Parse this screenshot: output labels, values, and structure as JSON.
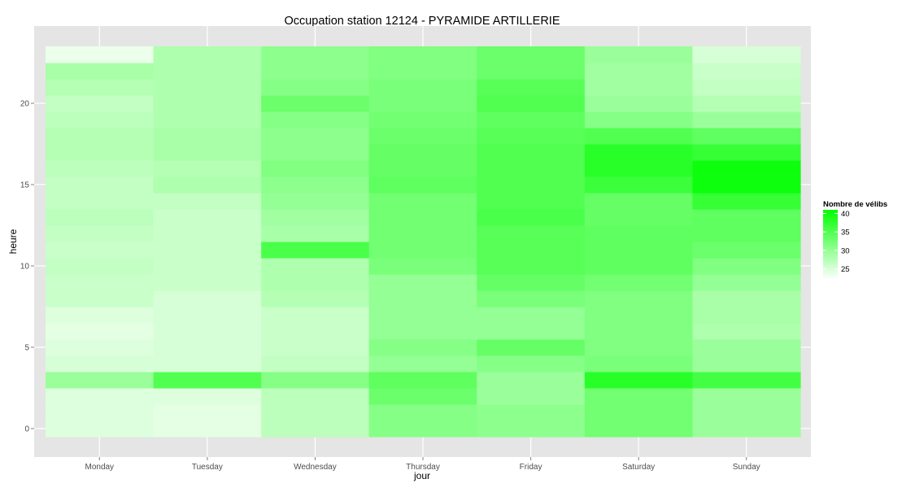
{
  "colors": {
    "low": "#ffffff",
    "high": "#00ff00",
    "panel": "#e5e5e5",
    "grid": "#ffffff",
    "tick_text": "#4d4d4d"
  },
  "chart_data": {
    "type": "heatmap",
    "title": "Occupation station 12124 - PYRAMIDE ARTILLERIE",
    "xlabel": "jour",
    "ylabel": "heure",
    "x": [
      "Monday",
      "Tuesday",
      "Wednesday",
      "Thursday",
      "Friday",
      "Saturday",
      "Sunday"
    ],
    "y": [
      0,
      1,
      2,
      3,
      4,
      5,
      6,
      7,
      8,
      9,
      10,
      11,
      12,
      13,
      14,
      15,
      16,
      17,
      18,
      19,
      20,
      21,
      22,
      23
    ],
    "yticks": [
      0,
      5,
      10,
      15,
      20
    ],
    "ylim": [
      -0.5,
      23.5
    ],
    "legend": {
      "title": "Nombre de vélibs",
      "ticks": [
        25,
        30,
        35,
        40
      ],
      "range": [
        22,
        41
      ],
      "position": "right"
    },
    "values": [
      [
        24.5,
        24,
        27,
        31,
        30.5,
        32.5,
        29.5
      ],
      [
        24.5,
        24,
        27,
        31,
        30.5,
        32.5,
        29.5
      ],
      [
        24.5,
        24.5,
        27,
        33,
        29.5,
        32.5,
        29.5
      ],
      [
        29.5,
        35,
        31,
        34,
        29.5,
        38,
        36
      ],
      [
        25,
        25,
        26.5,
        30,
        31,
        32,
        29.5
      ],
      [
        24.5,
        25,
        26,
        31,
        33.5,
        31.5,
        29.5
      ],
      [
        24,
        25,
        26,
        30,
        30,
        31.5,
        28
      ],
      [
        24.5,
        25,
        26,
        30,
        30,
        31.5,
        28.5
      ],
      [
        26,
        25,
        27.5,
        30,
        32,
        31.5,
        28.5
      ],
      [
        26,
        26,
        28,
        30,
        33.5,
        32.5,
        30
      ],
      [
        26.5,
        26,
        28,
        32,
        34.5,
        34,
        31.5
      ],
      [
        26,
        26,
        35.5,
        32.5,
        34.5,
        34,
        33
      ],
      [
        26.5,
        26,
        28.5,
        32.5,
        34.5,
        34,
        34
      ],
      [
        27,
        26,
        29,
        32.5,
        35.5,
        33.5,
        34
      ],
      [
        26.5,
        26.5,
        30,
        32.5,
        35,
        33.5,
        37
      ],
      [
        26.5,
        28,
        30.5,
        34,
        35,
        36.5,
        40
      ],
      [
        27,
        27.5,
        31.5,
        33.5,
        35,
        38,
        40
      ],
      [
        27.5,
        28.5,
        30.5,
        33.5,
        35,
        38,
        37
      ],
      [
        27.5,
        28.5,
        30.5,
        33,
        34.5,
        35,
        34
      ],
      [
        27,
        28,
        31,
        32.5,
        34,
        31,
        29.5
      ],
      [
        26.5,
        28,
        33,
        32,
        35,
        29.5,
        27.5
      ],
      [
        27.5,
        28,
        31,
        32,
        34.5,
        29,
        26.5
      ],
      [
        28.5,
        28,
        30.5,
        31.5,
        33,
        29,
        26
      ],
      [
        23.5,
        28,
        30.5,
        31.5,
        33,
        29.5,
        25
      ]
    ]
  }
}
